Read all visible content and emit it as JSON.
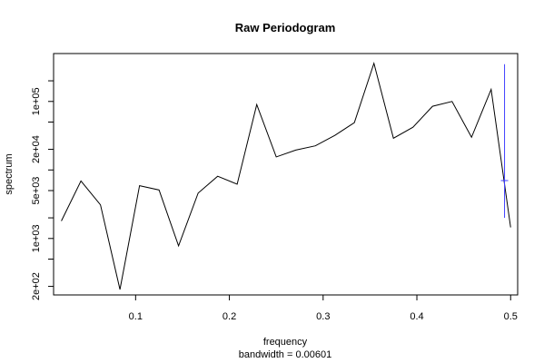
{
  "chart_data": {
    "type": "line",
    "title": "Raw Periodogram",
    "xlabel": "frequency",
    "ylabel": "spectrum",
    "subtitle": "bandwidth = 0.00601",
    "log_y": true,
    "xlim": [
      0.0125,
      0.5075
    ],
    "ylim": [
      150,
      500000
    ],
    "x_ticks": [
      {
        "value": 0.1,
        "label": "0.1"
      },
      {
        "value": 0.2,
        "label": "0.2"
      },
      {
        "value": 0.3,
        "label": "0.3"
      },
      {
        "value": 0.4,
        "label": "0.4"
      },
      {
        "value": 0.5,
        "label": "0.5"
      }
    ],
    "y_ticks_labeled": [
      {
        "value": 200,
        "label": "2e+02"
      },
      {
        "value": 1000,
        "label": "1e+03"
      },
      {
        "value": 5000,
        "label": "5e+03"
      },
      {
        "value": 20000,
        "label": "2e+04"
      },
      {
        "value": 100000,
        "label": "1e+05"
      }
    ],
    "y_ticks_minor": [
      500,
      2000,
      10000,
      50000,
      200000
    ],
    "series": [
      {
        "x": [
          0.0208,
          0.0417,
          0.0625,
          0.0833,
          0.1042,
          0.125,
          0.1458,
          0.1667,
          0.1875,
          0.2083,
          0.2292,
          0.25,
          0.2708,
          0.2917,
          0.3125,
          0.3333,
          0.3542,
          0.375,
          0.3958,
          0.4167,
          0.4375,
          0.4583,
          0.4792,
          0.5
        ],
        "y": [
          1800,
          6900,
          3100,
          180,
          5900,
          5100,
          780,
          4600,
          8100,
          6200,
          90000,
          15500,
          19500,
          22500,
          32000,
          49000,
          360000,
          29000,
          42000,
          85000,
          100000,
          30000,
          150000,
          1450
        ],
        "color": "#000000"
      }
    ],
    "ci_bar": {
      "x": 0.4935,
      "y_center": 7000,
      "y_low": 2000,
      "y_high": 350000,
      "color": "#4040ff"
    }
  }
}
